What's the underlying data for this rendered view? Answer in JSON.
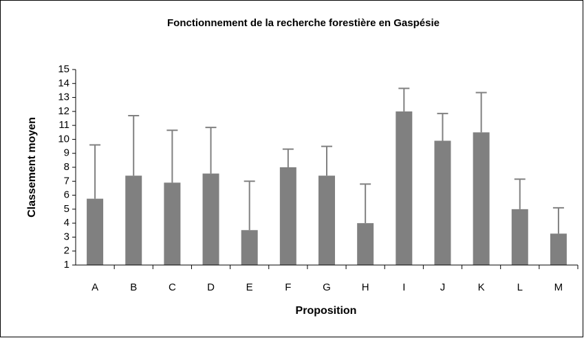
{
  "chart_data": {
    "type": "bar",
    "title": "Fonctionnement de la recherche forestière en Gaspésie",
    "x_label": "Proposition",
    "y_label": "Classement moyen",
    "categories": [
      "A",
      "B",
      "C",
      "D",
      "E",
      "F",
      "G",
      "H",
      "I",
      "J",
      "K",
      "L",
      "M"
    ],
    "values": [
      5.75,
      7.4,
      6.9,
      7.55,
      3.5,
      8,
      7.4,
      4,
      12,
      9.9,
      10.5,
      5,
      3.25
    ],
    "errors": [
      3.85,
      4.3,
      3.75,
      3.3,
      3.5,
      1.3,
      2.1,
      2.8,
      1.65,
      1.95,
      2.85,
      2.15,
      1.85
    ],
    "color": "#808080",
    "ylim": [
      1,
      15
    ],
    "yticks": [
      1,
      2,
      3,
      4,
      5,
      6,
      7,
      8,
      9,
      10,
      11,
      12,
      13,
      14,
      15
    ],
    "grid": false
  }
}
